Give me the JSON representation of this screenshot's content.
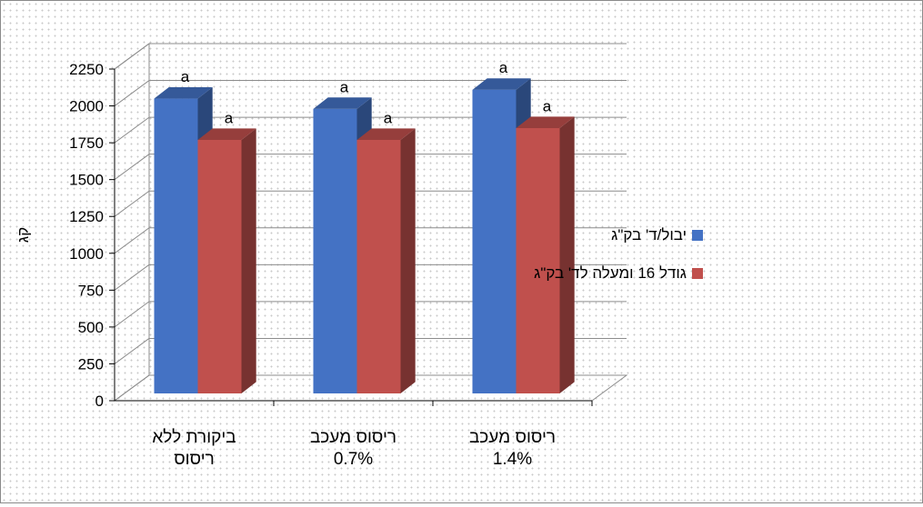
{
  "chart_data": {
    "type": "bar",
    "variant": "3d-clustered-column",
    "ylabel": "קג",
    "ylim": [
      0,
      2250
    ],
    "yticks": [
      0,
      250,
      500,
      750,
      1000,
      1250,
      1500,
      1750,
      2000,
      2250
    ],
    "categories": [
      [
        "ביקורת ללא",
        "ריסוס"
      ],
      [
        "ריסוס מעכב",
        "0.7%"
      ],
      [
        "ריסוס מעכב",
        "1.4%"
      ]
    ],
    "series": [
      {
        "name": "יבול/ד' בק\"ג",
        "color": "#4472c4",
        "values": [
          2000,
          1930,
          2060
        ],
        "data_labels": [
          "a",
          "a",
          "a"
        ]
      },
      {
        "name": "גודל 16 ומעלה לד' בק\"ג",
        "color": "#c0504d",
        "values": [
          1720,
          1720,
          1800
        ],
        "data_labels": [
          "a",
          "a",
          "a"
        ]
      }
    ],
    "legend_position": "right",
    "grid": true
  }
}
